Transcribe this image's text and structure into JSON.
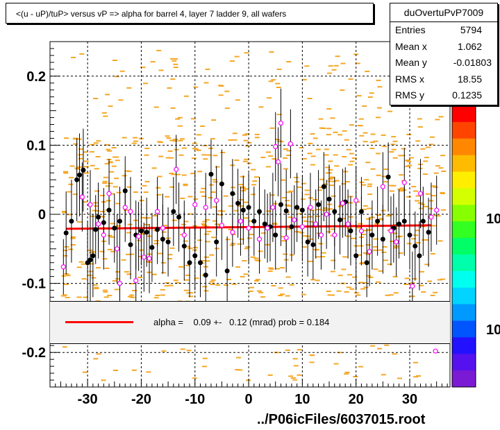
{
  "title": "<(u - uP)/tuP> versus   vP => alpha for barrel 4, layer 7 ladder 9, all wafers",
  "stats": {
    "name": "duOvertuPvP7009",
    "rows": [
      {
        "key": "Entries",
        "value": "5794"
      },
      {
        "key": "Mean x",
        "value": "1.062"
      },
      {
        "key": "Mean y",
        "value": "-0.01803"
      },
      {
        "key": "RMS x",
        "value": "18.55"
      },
      {
        "key": "RMS y",
        "value": "0.1235"
      }
    ]
  },
  "fit": {
    "text": "alpha =    0.09 +-   0.12 (mrad) prob = 0.184",
    "line_color": "#ff0000"
  },
  "footer": "../P06icFiles/6037015.root",
  "z_axis": {
    "labels": [
      "10",
      "10"
    ]
  },
  "colors": {
    "frame": "#000000",
    "histogram_fill": "#f5a623",
    "black_marker": "#000000",
    "magenta_marker": "#ff00ff",
    "fit_line": "#ff0000",
    "palette": [
      "#ff0000",
      "#ff4400",
      "#ff8800",
      "#ffbb00",
      "#ffee00",
      "#d4ff00",
      "#88ff00",
      "#33ff22",
      "#00ff66",
      "#00ffaa",
      "#00ffee",
      "#00d4ff",
      "#0099ff",
      "#0055ff",
      "#2211ff",
      "#5511ee",
      "#7a1ad4"
    ]
  },
  "chart_data": {
    "type": "scatter",
    "title": "<(u - uP)/tuP> versus   vP => alpha for barrel 4, layer 7 ladder 9, all wafers",
    "xlim": [
      -37,
      37.5
    ],
    "ylim": [
      -0.25,
      0.25
    ],
    "x_ticks": [
      -30,
      -20,
      -10,
      0,
      10,
      20,
      30
    ],
    "x_tick_labels": [
      "-30",
      "-20",
      "-10",
      "0",
      "10",
      "20",
      "30"
    ],
    "y_ticks": [
      -0.2,
      -0.1,
      0,
      0.1,
      0.2
    ],
    "y_tick_labels": [
      "-0.2",
      "-0.1",
      "0",
      "0.1",
      "0.2"
    ],
    "grid": true,
    "fit_line": {
      "x": [
        -34,
        34
      ],
      "y": [
        -0.021,
        -0.016
      ]
    },
    "series": [
      {
        "marker": "filled-circle",
        "color": "#000000",
        "points": [
          {
            "x": -34.0,
            "y": -0.027,
            "err": 0.06
          },
          {
            "x": -33.0,
            "y": -0.01,
            "err": 0.06
          },
          {
            "x": -32.0,
            "y": 0.05,
            "err": 0.06
          },
          {
            "x": -31.5,
            "y": 0.057,
            "err": 0.06
          },
          {
            "x": -30.8,
            "y": 0.064,
            "err": 0.06
          },
          {
            "x": -30.0,
            "y": -0.07,
            "err": 0.06
          },
          {
            "x": -29.5,
            "y": -0.066,
            "err": 0.06
          },
          {
            "x": -29.0,
            "y": -0.06,
            "err": 0.06
          },
          {
            "x": -28.5,
            "y": -0.022,
            "err": 0.05
          },
          {
            "x": -28.0,
            "y": -0.004,
            "err": 0.05
          },
          {
            "x": -27.0,
            "y": -0.012,
            "err": 0.05
          },
          {
            "x": -26.0,
            "y": 0.006,
            "err": 0.05
          },
          {
            "x": -25.0,
            "y": -0.02,
            "err": 0.05
          },
          {
            "x": -24.0,
            "y": -0.01,
            "err": 0.05
          },
          {
            "x": -23.0,
            "y": 0.034,
            "err": 0.05
          },
          {
            "x": -22.0,
            "y": -0.044,
            "err": 0.05
          },
          {
            "x": -21.0,
            "y": -0.03,
            "err": 0.05
          },
          {
            "x": -20.0,
            "y": -0.024,
            "err": 0.05
          },
          {
            "x": -19.0,
            "y": -0.026,
            "err": 0.05
          },
          {
            "x": -18.0,
            "y": -0.048,
            "err": 0.05
          },
          {
            "x": -17.0,
            "y": -0.022,
            "err": 0.05
          },
          {
            "x": -16.0,
            "y": -0.036,
            "err": 0.05
          },
          {
            "x": -15.0,
            "y": -0.04,
            "err": 0.05
          },
          {
            "x": -14.0,
            "y": 0.004,
            "err": 0.05
          },
          {
            "x": -13.0,
            "y": -0.004,
            "err": 0.05
          },
          {
            "x": -12.0,
            "y": -0.046,
            "err": 0.05
          },
          {
            "x": -11.0,
            "y": -0.07,
            "err": 0.05
          },
          {
            "x": -10.0,
            "y": -0.06,
            "err": 0.05
          },
          {
            "x": -9.0,
            "y": -0.07,
            "err": 0.05
          },
          {
            "x": -8.0,
            "y": -0.088,
            "err": 0.05
          },
          {
            "x": -7.0,
            "y": 0.058,
            "err": 0.05
          },
          {
            "x": -6.0,
            "y": -0.04,
            "err": 0.05
          },
          {
            "x": -5.0,
            "y": 0.044,
            "err": 0.05
          },
          {
            "x": -4.0,
            "y": -0.082,
            "err": 0.05
          },
          {
            "x": -3.0,
            "y": 0.03,
            "err": 0.05
          },
          {
            "x": -2.0,
            "y": 0.016,
            "err": 0.05
          },
          {
            "x": -1.0,
            "y": 0.006,
            "err": 0.05
          },
          {
            "x": 0.0,
            "y": 0.01,
            "err": 0.05
          },
          {
            "x": 1.0,
            "y": -0.01,
            "err": 0.05
          },
          {
            "x": 2.0,
            "y": 0.004,
            "err": 0.05
          },
          {
            "x": 3.0,
            "y": -0.014,
            "err": 0.05
          },
          {
            "x": 4.0,
            "y": -0.018,
            "err": 0.05
          },
          {
            "x": 5.0,
            "y": -0.03,
            "err": 0.05
          },
          {
            "x": 6.0,
            "y": 0.014,
            "err": 0.06
          },
          {
            "x": 7.0,
            "y": 0.005,
            "err": 0.06
          },
          {
            "x": 8.0,
            "y": -0.018,
            "err": 0.05
          },
          {
            "x": 9.0,
            "y": 0.01,
            "err": 0.05
          },
          {
            "x": 10.0,
            "y": 0.006,
            "err": 0.05
          },
          {
            "x": 11.0,
            "y": -0.04,
            "err": 0.05
          },
          {
            "x": 12.0,
            "y": -0.044,
            "err": 0.05
          },
          {
            "x": 13.0,
            "y": 0.014,
            "err": 0.05
          },
          {
            "x": 14.0,
            "y": 0.04,
            "err": 0.05
          },
          {
            "x": 15.0,
            "y": 0.022,
            "err": 0.05
          },
          {
            "x": 16.0,
            "y": 0.004,
            "err": 0.05
          },
          {
            "x": 17.0,
            "y": -0.008,
            "err": 0.05
          },
          {
            "x": 18.0,
            "y": 0.018,
            "err": 0.05
          },
          {
            "x": 19.0,
            "y": -0.024,
            "err": 0.05
          },
          {
            "x": 20.0,
            "y": -0.06,
            "err": 0.05
          },
          {
            "x": 21.0,
            "y": 0.004,
            "err": 0.05
          },
          {
            "x": 22.0,
            "y": -0.07,
            "err": 0.05
          },
          {
            "x": 23.0,
            "y": -0.03,
            "err": 0.05
          },
          {
            "x": 24.0,
            "y": -0.01,
            "err": 0.05
          },
          {
            "x": 25.0,
            "y": -0.036,
            "err": 0.05
          },
          {
            "x": 26.0,
            "y": 0.054,
            "err": 0.05
          },
          {
            "x": 27.0,
            "y": -0.02,
            "err": 0.05
          },
          {
            "x": 28.0,
            "y": -0.014,
            "err": 0.05
          },
          {
            "x": 29.0,
            "y": -0.01,
            "err": 0.05
          },
          {
            "x": 30.0,
            "y": -0.03,
            "err": 0.05
          },
          {
            "x": 31.0,
            "y": -0.046,
            "err": 0.05
          },
          {
            "x": 31.8,
            "y": -0.06,
            "err": 0.05
          },
          {
            "x": 32.5,
            "y": -0.01,
            "err": 0.05
          },
          {
            "x": 33.5,
            "y": -0.026,
            "err": 0.05
          }
        ]
      },
      {
        "marker": "open-circle",
        "color": "#ff00ff",
        "points": [
          {
            "x": -34.5,
            "y": -0.076,
            "err": 0.04
          },
          {
            "x": -31.0,
            "y": 0.025,
            "err": 0.05
          },
          {
            "x": -29.5,
            "y": 0.014,
            "err": 0.05
          },
          {
            "x": -28.0,
            "y": -0.014,
            "err": 0.05
          },
          {
            "x": -27.0,
            "y": -0.03,
            "err": 0.05
          },
          {
            "x": -26.0,
            "y": 0.03,
            "err": 0.05
          },
          {
            "x": -24.5,
            "y": -0.05,
            "err": 0.05
          },
          {
            "x": -24.0,
            "y": -0.1,
            "err": 0.05
          },
          {
            "x": -23.0,
            "y": 0.01,
            "err": 0.05
          },
          {
            "x": -22.0,
            "y": 0.004,
            "err": 0.05
          },
          {
            "x": -21.0,
            "y": -0.096,
            "err": 0.05
          },
          {
            "x": -20.5,
            "y": -0.032,
            "err": 0.05
          },
          {
            "x": -19.5,
            "y": -0.062,
            "err": 0.05
          },
          {
            "x": -18.5,
            "y": -0.064,
            "err": 0.05
          },
          {
            "x": -17.0,
            "y": 0.004,
            "err": 0.05
          },
          {
            "x": -16.0,
            "y": -0.02,
            "err": 0.05
          },
          {
            "x": -13.5,
            "y": 0.065,
            "err": 0.05
          },
          {
            "x": -12.0,
            "y": -0.03,
            "err": 0.05
          },
          {
            "x": -10.0,
            "y": 0.014,
            "err": 0.05
          },
          {
            "x": -8.0,
            "y": 0.01,
            "err": 0.05
          },
          {
            "x": -6.0,
            "y": 0.02,
            "err": 0.05
          },
          {
            "x": -5.0,
            "y": -0.016,
            "err": 0.05
          },
          {
            "x": -3.0,
            "y": -0.026,
            "err": 0.05
          },
          {
            "x": -1.5,
            "y": -0.01,
            "err": 0.05
          },
          {
            "x": 0.0,
            "y": -0.02,
            "err": 0.05
          },
          {
            "x": 2.0,
            "y": -0.036,
            "err": 0.05
          },
          {
            "x": 3.5,
            "y": -0.02,
            "err": 0.05
          },
          {
            "x": 4.5,
            "y": 0.01,
            "err": 0.05
          },
          {
            "x": 5.0,
            "y": 0.098,
            "err": 0.05
          },
          {
            "x": 5.5,
            "y": 0.076,
            "err": 0.05
          },
          {
            "x": 6.0,
            "y": 0.132,
            "err": 0.05
          },
          {
            "x": 7.0,
            "y": -0.034,
            "err": 0.05
          },
          {
            "x": 7.8,
            "y": 0.102,
            "err": 0.05
          },
          {
            "x": 8.5,
            "y": -0.008,
            "err": 0.05
          },
          {
            "x": 10.0,
            "y": -0.018,
            "err": 0.05
          },
          {
            "x": 11.5,
            "y": 0.01,
            "err": 0.05
          },
          {
            "x": 12.5,
            "y": -0.014,
            "err": 0.05
          },
          {
            "x": 13.5,
            "y": -0.03,
            "err": 0.05
          },
          {
            "x": 14.5,
            "y": 0.0,
            "err": 0.05
          },
          {
            "x": 16.0,
            "y": -0.03,
            "err": 0.05
          },
          {
            "x": 17.5,
            "y": 0.016,
            "err": 0.05
          },
          {
            "x": 18.5,
            "y": -0.014,
            "err": 0.05
          },
          {
            "x": 20.0,
            "y": 0.02,
            "err": 0.05
          },
          {
            "x": 21.0,
            "y": -0.024,
            "err": 0.05
          },
          {
            "x": 22.5,
            "y": -0.054,
            "err": 0.05
          },
          {
            "x": 25.0,
            "y": 0.04,
            "err": 0.05
          },
          {
            "x": 26.5,
            "y": -0.024,
            "err": 0.05
          },
          {
            "x": 27.5,
            "y": -0.04,
            "err": 0.05
          },
          {
            "x": 29.0,
            "y": 0.046,
            "err": 0.05
          },
          {
            "x": 30.5,
            "y": -0.104,
            "err": 0.05
          },
          {
            "x": 32.0,
            "y": 0.03,
            "err": 0.05
          },
          {
            "x": 34.0,
            "y": -0.004,
            "err": 0.05
          },
          {
            "x": 35.0,
            "y": 0.006,
            "err": 0.05
          },
          {
            "x": 34.8,
            "y": -0.198,
            "err": 0.0
          }
        ]
      }
    ]
  }
}
